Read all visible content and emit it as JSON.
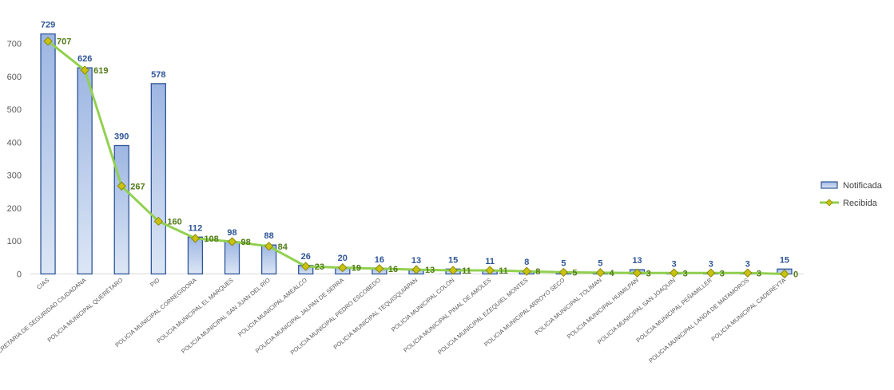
{
  "chart_data": {
    "type": "bar",
    "title": "",
    "xlabel": "",
    "ylabel": "",
    "ylim": [
      0,
      800
    ],
    "yticks": [
      0,
      100,
      200,
      300,
      400,
      500,
      600,
      700
    ],
    "grid": false,
    "legend_position": "right",
    "categories": [
      "CIAS",
      "SECRETARIA DE SEGURIDAD CIUDADANA",
      "POLICIA MUNICIPAL QUERÉTARO",
      "PID",
      "POLICIA MUNICIPAL CORREGIDORA",
      "POLICIA MUNICIPAL EL MARQUES",
      "POLICIA MUNICIPAL SAN JUAN DEL RÍO",
      "POLICIA MUNICIPAL AMEALCO",
      "POLICIA MUNICIPAL JALPAN DE SERRA",
      "POLICIA MUNICIPAL PEDRO ESCOBEDO",
      "POLICIA MUNICIPAL TEQUISQUIAPAN",
      "POLICIA MUNICIPAL COLÓN",
      "POLICIA MUNICIPAL PINAL DE AMOLES",
      "POLICIA MUNICIPAL EZEQUIEL MONTES",
      "POLICIA MUNICIPAL ARROYO SECO",
      "POLICIA MUNICIPAL TOLIMAN",
      "POLICIA MUNICIPAL HUIMILPAN",
      "POLICIA MUNICIPAL SAN JOAQUIN",
      "POLICIA MUNICIPAL PEÑAMILLER",
      "POLICIA MUNICIPAL LANDA DE MATAMOROS",
      "POLICIA MUNICIPAL CADEREYTA"
    ],
    "series": [
      {
        "name": "Notificada",
        "type": "bar",
        "color": "#4472C4",
        "label_color": "#2F5597",
        "values": [
          729,
          626,
          390,
          578,
          112,
          98,
          88,
          26,
          20,
          16,
          13,
          15,
          11,
          8,
          5,
          5,
          13,
          3,
          3,
          3,
          15
        ]
      },
      {
        "name": "Recibida",
        "type": "line",
        "color": "#92D050",
        "marker_color": "#C9C20F",
        "label_color": "#4F7A16",
        "values": [
          707,
          619,
          267,
          160,
          108,
          98,
          84,
          23,
          19,
          16,
          13,
          11,
          11,
          8,
          5,
          4,
          3,
          3,
          3,
          3,
          0
        ]
      }
    ]
  }
}
